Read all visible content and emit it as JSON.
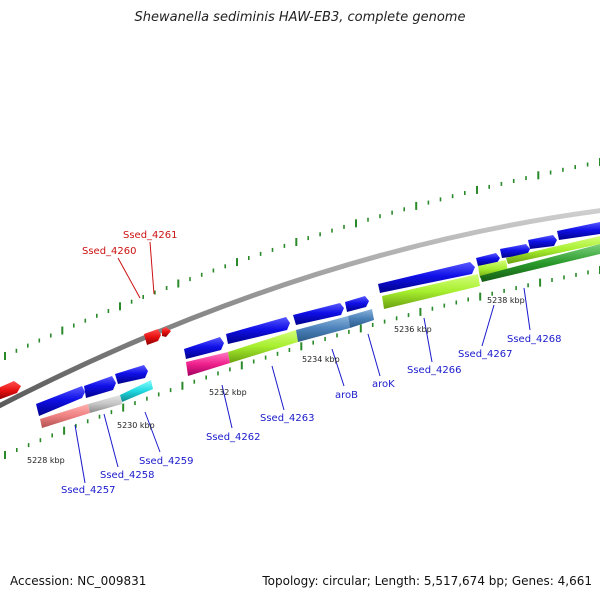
{
  "title": "Shewanella sediminis HAW-EB3, complete genome",
  "accession": "Accession: NC_009831",
  "summary": "Topology: circular; Length: 5,517,674 bp; Genes: 4,661",
  "colors": {
    "backbone": "#8c8c8c",
    "tick": "#2a8a2a",
    "forward_gene": "#1010e0",
    "reverse_gene": "#e01010",
    "label_forward": "#1a1acc",
    "label_reverse": "#cc1111"
  },
  "scale_labels": [
    "5228 kbp",
    "5230 kbp",
    "5232 kbp",
    "5234 kbp",
    "5236 kbp",
    "5238 kbp"
  ],
  "genes": [
    {
      "label": "Ssed_4257",
      "strand": "forward"
    },
    {
      "label": "Ssed_4258",
      "strand": "forward"
    },
    {
      "label": "Ssed_4259",
      "strand": "forward"
    },
    {
      "label": "Ssed_4260",
      "strand": "reverse"
    },
    {
      "label": "Ssed_4261",
      "strand": "reverse"
    },
    {
      "label": "Ssed_4262",
      "strand": "forward"
    },
    {
      "label": "Ssed_4263",
      "strand": "forward"
    },
    {
      "label": "aroB",
      "strand": "forward"
    },
    {
      "label": "aroK",
      "strand": "forward"
    },
    {
      "label": "Ssed_4266",
      "strand": "forward"
    },
    {
      "label": "Ssed_4267",
      "strand": "forward"
    },
    {
      "label": "Ssed_4268",
      "strand": "forward"
    }
  ]
}
